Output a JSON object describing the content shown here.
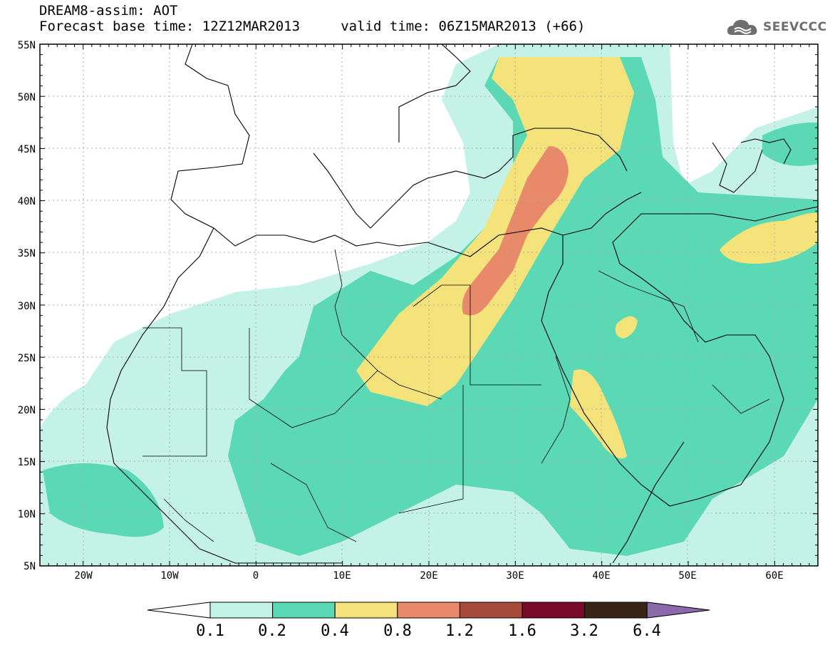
{
  "title": {
    "line1": "DREAM8-assim: AOT",
    "line2": "Forecast base time: 12Z12MAR2013     valid time: 06Z15MAR2013 (+66)"
  },
  "logo": {
    "text": "SEEVCCC",
    "icon": "cloud-icon",
    "color": "#6e6e6e"
  },
  "map": {
    "lon_range": [
      -25,
      65
    ],
    "lat_range": [
      5,
      55
    ],
    "lat_ticks": [
      "5N",
      "10N",
      "15N",
      "20N",
      "25N",
      "30N",
      "35N",
      "40N",
      "45N",
      "50N",
      "55N"
    ],
    "lon_ticks": [
      "20W",
      "10W",
      "0",
      "10E",
      "20E",
      "30E",
      "40E",
      "50E",
      "60E"
    ],
    "grid": true
  },
  "colorbar": {
    "labels": [
      "0.1",
      "0.2",
      "0.4",
      "0.8",
      "1.2",
      "1.6",
      "3.2",
      "6.4"
    ],
    "colors": [
      "#ffffff",
      "#c5f2e6",
      "#5ad9b4",
      "#f4e27a",
      "#e8896a",
      "#a84a3c",
      "#7a0a2a",
      "#3a2418",
      "#8a6aaa"
    ]
  }
}
